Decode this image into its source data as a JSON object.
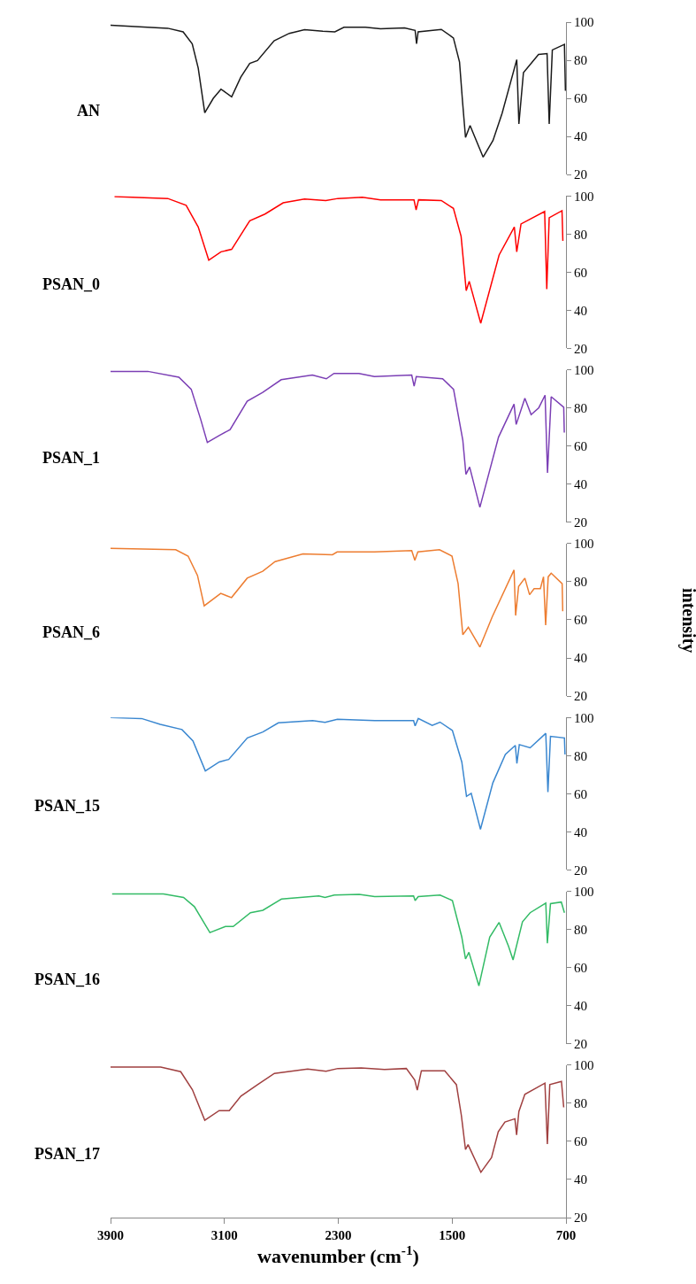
{
  "chart_data": [
    {
      "type": "line",
      "xlim": [
        3900,
        700
      ],
      "ylim": [
        20,
        100
      ],
      "yticks": [
        20,
        40,
        60,
        80,
        100
      ],
      "tick_labels": "y",
      "series": [
        {
          "name": "AN",
          "color": "#1a1a1a",
          "x": [
            3900,
            3498,
            3390,
            3326,
            3284,
            3238,
            3178,
            3124,
            3049,
            2985,
            2922,
            2868,
            2751,
            2644,
            2537,
            2409,
            2324,
            2260,
            2110,
            2003,
            1835,
            1760,
            1750,
            1739,
            1576,
            1491,
            1448,
            1427,
            1406,
            1374,
            1282,
            1213,
            1149,
            1046,
            1031,
            999,
            893,
            833,
            818,
            796,
            711,
            704
          ],
          "values": [
            98.4,
            96.8,
            94.9,
            88.6,
            75.9,
            52.4,
            60,
            64.8,
            60.8,
            71.1,
            78.3,
            79.8,
            90.2,
            94.1,
            96,
            95.2,
            94.9,
            97.3,
            97.3,
            96.5,
            97,
            95.7,
            88.6,
            94.9,
            96.2,
            91.7,
            79,
            58.4,
            39.4,
            45.7,
            29.1,
            37.8,
            52.1,
            80.3,
            46.5,
            73.5,
            83,
            83.5,
            46.5,
            85.4,
            88.3,
            64
          ]
        }
      ]
    },
    {
      "type": "line",
      "xlim": [
        3900,
        700
      ],
      "ylim": [
        20,
        100
      ],
      "yticks": [
        20,
        40,
        60,
        80,
        100
      ],
      "tick_labels": "y",
      "series": [
        {
          "name": "PSAN_0",
          "color": "#ff0000",
          "x": [
            3872,
            3498,
            3369,
            3284,
            3210,
            3124,
            3049,
            2922,
            2815,
            2687,
            2537,
            2388,
            2302,
            2131,
            2003,
            1768,
            1753,
            1736,
            1576,
            1491,
            1437,
            1401,
            1380,
            1299,
            1170,
            1063,
            1046,
            1016,
            850,
            835,
            818,
            728,
            722
          ],
          "values": [
            99.7,
            98.7,
            95.1,
            83.7,
            66.3,
            70.7,
            72,
            87,
            90.5,
            96.4,
            98.4,
            97.6,
            98.7,
            99.3,
            97.9,
            98,
            92.7,
            98,
            97.6,
            93.5,
            78.8,
            50.3,
            55.2,
            33.2,
            69,
            83.7,
            70.7,
            85.3,
            91.9,
            51.1,
            88.6,
            92.3,
            76.4
          ]
        }
      ]
    },
    {
      "type": "line",
      "xlim": [
        3900,
        700
      ],
      "ylim": [
        20,
        100
      ],
      "yticks": [
        20,
        40,
        60,
        80,
        100
      ],
      "tick_labels": "y",
      "series": [
        {
          "name": "PSAN_1",
          "color": "#7b3fb5",
          "x": [
            3900,
            3638,
            3420,
            3333,
            3267,
            3220,
            3137,
            3060,
            2940,
            2831,
            2701,
            2482,
            2384,
            2330,
            2155,
            2046,
            1784,
            1767,
            1752,
            1567,
            1490,
            1425,
            1403,
            1377,
            1305,
            1174,
            1065,
            1050,
            989,
            945,
            891,
            847,
            830,
            804,
            716,
            712
          ],
          "values": [
            99.2,
            99.2,
            96.1,
            89.8,
            74.1,
            61.9,
            65.5,
            68.6,
            83.5,
            88.2,
            94.8,
            97.3,
            95.3,
            98.1,
            98.1,
            96.5,
            97.3,
            91.4,
            96.5,
            95.3,
            89.8,
            63.1,
            45.1,
            49,
            27.8,
            64.7,
            82,
            71.3,
            85.1,
            76.5,
            80.1,
            86.7,
            45.9,
            85.9,
            80.4,
            67.1
          ]
        }
      ]
    },
    {
      "type": "line",
      "xlim": [
        3900,
        700
      ],
      "ylim": [
        20,
        100
      ],
      "yticks": [
        20,
        40,
        60,
        80,
        100
      ],
      "tick_labels": "y",
      "ylabel": "intensity",
      "series": [
        {
          "name": "PSAN_6",
          "color": "#ed7d31",
          "x": [
            3900,
            3442,
            3355,
            3289,
            3242,
            3126,
            3050,
            2940,
            2831,
            2744,
            2548,
            2341,
            2308,
            2046,
            1784,
            1762,
            1741,
            1589,
            1501,
            1458,
            1425,
            1386,
            1305,
            1218,
            1065,
            1054,
            1033,
            989,
            956,
            924,
            880,
            858,
            843,
            825,
            804,
            727,
            723
          ],
          "values": [
            97.5,
            96.8,
            93.5,
            83.3,
            67.4,
            73.9,
            71.7,
            81.9,
            85.5,
            90.6,
            94.6,
            94.2,
            95.7,
            95.7,
            96.4,
            91.3,
            95.7,
            96.8,
            93.5,
            79,
            52.2,
            56.1,
            45.7,
            61.6,
            86.2,
            62.3,
            77.5,
            81.9,
            73.2,
            76.4,
            76.4,
            82.6,
            57.2,
            82.6,
            84.5,
            79,
            64.5
          ]
        }
      ]
    },
    {
      "type": "line",
      "xlim": [
        3900,
        700
      ],
      "ylim": [
        20,
        100
      ],
      "yticks": [
        20,
        40,
        60,
        80,
        100
      ],
      "tick_labels": "y",
      "series": [
        {
          "name": "PSAN_15",
          "color": "#3a87d0",
          "x": [
            3900,
            3682,
            3551,
            3398,
            3321,
            3234,
            3136,
            3070,
            2939,
            2830,
            2721,
            2480,
            2393,
            2306,
            2044,
            1771,
            1760,
            1738,
            1640,
            1585,
            1498,
            1432,
            1399,
            1366,
            1301,
            1214,
            1126,
            1056,
            1045,
            1028,
            952,
            842,
            827,
            809,
            711,
            707
          ],
          "values": [
            100,
            99.5,
            96.4,
            93.7,
            87.7,
            72,
            76.7,
            78,
            89.3,
            92.4,
            97.2,
            98.4,
            97.5,
            99.1,
            98.4,
            98.4,
            95.6,
            99.5,
            95.9,
            97.6,
            93.2,
            76.7,
            58.6,
            60.2,
            41.3,
            65.7,
            80.6,
            85.4,
            75.9,
            85.8,
            84.1,
            91.7,
            60.9,
            90.1,
            89.3,
            80.6
          ]
        }
      ]
    },
    {
      "type": "line",
      "xlim": [
        3900,
        700
      ],
      "ylim": [
        20,
        100
      ],
      "yticks": [
        20,
        40,
        60,
        80,
        100
      ],
      "tick_labels": "y",
      "series": [
        {
          "name": "PSAN_16",
          "color": "#33bb66",
          "x": [
            3889,
            3529,
            3387,
            3311,
            3202,
            3093,
            3038,
            2917,
            2830,
            2699,
            2437,
            2393,
            2328,
            2153,
            2044,
            1771,
            1760,
            1738,
            1585,
            1498,
            1432,
            1406,
            1382,
            1312,
            1236,
            1170,
            1104,
            1072,
            1006,
            952,
            842,
            831,
            809,
            733,
            711
          ],
          "values": [
            98.7,
            98.7,
            96.8,
            92,
            78.4,
            81.6,
            81.6,
            88.8,
            90.1,
            96,
            97.6,
            96.8,
            98.1,
            98.4,
            97.3,
            97.6,
            95.2,
            97.3,
            98.1,
            95.2,
            76,
            64.5,
            68,
            50.4,
            76,
            83.7,
            71.2,
            64,
            84,
            88.8,
            93.9,
            72.8,
            93.6,
            94.4,
            88.8
          ]
        }
      ]
    },
    {
      "type": "line",
      "xlim": [
        3900,
        700
      ],
      "ylim": [
        20,
        100
      ],
      "yticks": [
        20,
        40,
        60,
        80,
        100
      ],
      "xticks": [
        3900,
        3100,
        2300,
        1500,
        700
      ],
      "xlabel": "wavenumber (cm$^{-1}$)",
      "series": [
        {
          "name": "PSAN_17",
          "color": "#a04040",
          "x": [
            3900,
            3548,
            3407,
            3325,
            3238,
            3137,
            3066,
            2984,
            2867,
            2749,
            2515,
            2386,
            2303,
            2139,
            1975,
            1822,
            1763,
            1745,
            1716,
            1552,
            1470,
            1435,
            1406,
            1388,
            1298,
            1223,
            1176,
            1129,
            1059,
            1047,
            1031,
            989,
            848,
            831,
            814,
            732,
            716
          ],
          "values": [
            99.1,
            99.1,
            96.6,
            87.2,
            71.1,
            76.2,
            76.2,
            83.8,
            89.8,
            95.7,
            98,
            96.9,
            98.3,
            98.6,
            97.8,
            98.3,
            92.3,
            86.9,
            97.1,
            97.1,
            89.8,
            73.6,
            55.7,
            58.3,
            43.8,
            51.5,
            65.1,
            70.2,
            71.9,
            63.4,
            75.7,
            84.7,
            90.6,
            58.6,
            89.8,
            91.5,
            77.9
          ]
        }
      ]
    }
  ]
}
